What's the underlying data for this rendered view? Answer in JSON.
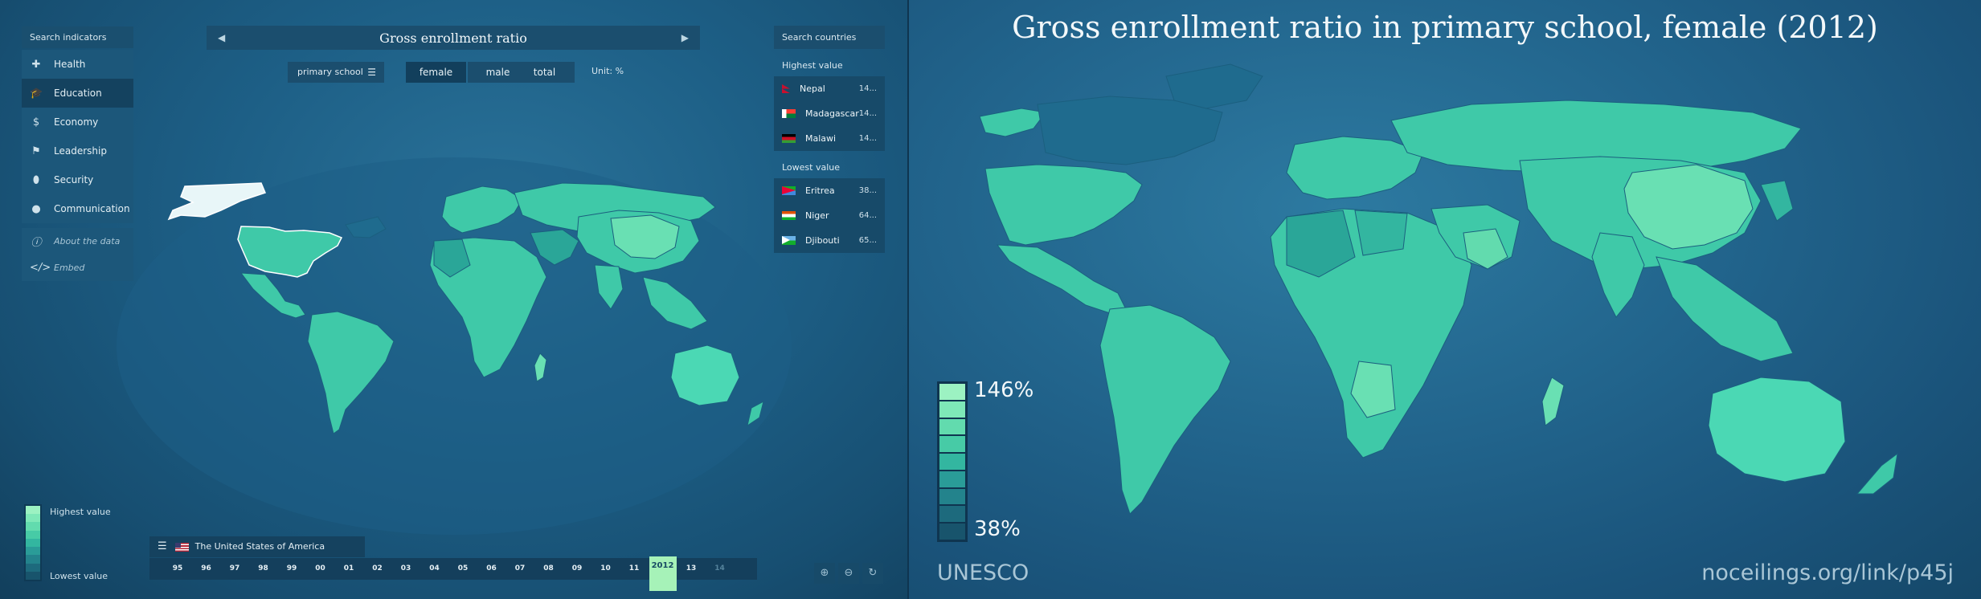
{
  "sidebar": {
    "header": "Search indicators",
    "items": [
      {
        "label": "Health",
        "icon": "plus-icon"
      },
      {
        "label": "Education",
        "icon": "graduation-cap-icon"
      },
      {
        "label": "Economy",
        "icon": "dollar-icon"
      },
      {
        "label": "Leadership",
        "icon": "flag-icon"
      },
      {
        "label": "Security",
        "icon": "shield-icon"
      },
      {
        "label": "Communication",
        "icon": "speech-bubble-icon"
      }
    ],
    "sub_items": [
      {
        "label": "About the data",
        "icon": "info-icon"
      },
      {
        "label": "Embed",
        "icon": "code-icon"
      }
    ]
  },
  "header": {
    "title": "Gross enrollment ratio",
    "level_select": "primary school",
    "toggles": [
      "female",
      "male",
      "total"
    ],
    "unit": "Unit: %"
  },
  "country_panel": {
    "search": "Search countries",
    "highest_label": "Highest value",
    "highest": [
      {
        "name": "Nepal",
        "value": "14..."
      },
      {
        "name": "Madagascar",
        "value": "14..."
      },
      {
        "name": "Malawi",
        "value": "14..."
      }
    ],
    "lowest_label": "Lowest value",
    "lowest": [
      {
        "name": "Eritrea",
        "value": "38..."
      },
      {
        "name": "Niger",
        "value": "64..."
      },
      {
        "name": "Djibouti",
        "value": "65..."
      }
    ]
  },
  "legend_left": {
    "high": "Highest value",
    "low": "Lowest value"
  },
  "timeline": {
    "country": "The United States of America",
    "years": [
      "95",
      "96",
      "97",
      "98",
      "99",
      "00",
      "01",
      "02",
      "03",
      "04",
      "05",
      "06",
      "07",
      "08",
      "09",
      "10",
      "11",
      "2012",
      "13",
      "14"
    ],
    "selected": "2012"
  },
  "share": {
    "title": "Gross enrollment ratio in primary school, female (2012)",
    "legend_high": "146%",
    "legend_low": "38%",
    "source": "UNESCO",
    "link": "noceilings.org/link/p45j"
  },
  "colors": {
    "scale": [
      "#9cf2c2",
      "#7ee8b8",
      "#62dbae",
      "#47cba6",
      "#33b6a0",
      "#2a9c98",
      "#23838c",
      "#1d6a7d",
      "#18546c"
    ],
    "map_land": "#3fc9a8",
    "map_land_light": "#69e0b3"
  }
}
